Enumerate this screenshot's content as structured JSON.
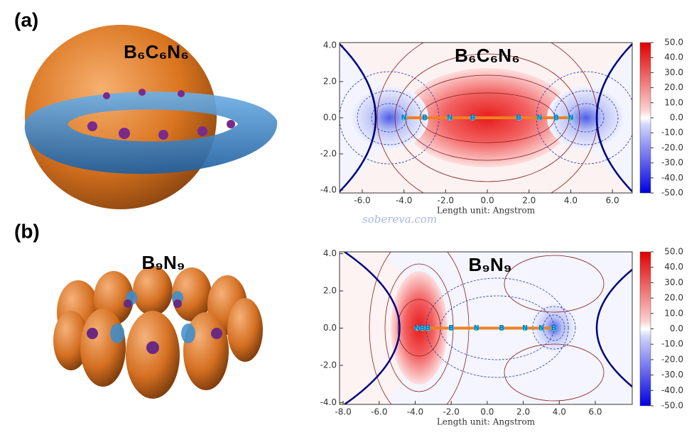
{
  "watermark": "sobereva.com",
  "panels": [
    {
      "label": "(a)",
      "molecule": "B₆C₆N₆",
      "map": {
        "title": "B₆C₆N₆",
        "xlabel": "Length unit: Angstrom",
        "xlim": [
          -7.09,
          6.95
        ],
        "ylim": [
          -4.16,
          4.16
        ],
        "xticks": [
          {
            "value": -6,
            "label": "-6.0"
          },
          {
            "value": -4,
            "label": "-4.0"
          },
          {
            "value": -2,
            "label": "-2.0"
          },
          {
            "value": 0,
            "label": "0.0"
          },
          {
            "value": 2,
            "label": "2.0"
          },
          {
            "value": 4,
            "label": "4.0"
          },
          {
            "value": 6,
            "label": "6.0"
          }
        ],
        "yticks": [
          {
            "value": 4,
            "label": "4.0"
          },
          {
            "value": 2,
            "label": "2.0"
          },
          {
            "value": 0,
            "label": "0.0"
          },
          {
            "value": -2,
            "label": "-2.0"
          },
          {
            "value": -4,
            "label": "-4.0"
          }
        ],
        "colorbar": {
          "lim": [
            -50,
            50
          ],
          "ticks": [
            {
              "value": 50,
              "label": "50.0"
            },
            {
              "value": 40,
              "label": "40.0"
            },
            {
              "value": 30,
              "label": "30.0"
            },
            {
              "value": 20,
              "label": "20.0"
            },
            {
              "value": 10,
              "label": "10.0"
            },
            {
              "value": 0,
              "label": "0.0"
            },
            {
              "value": -10,
              "label": "-10.0"
            },
            {
              "value": -20,
              "label": "-20.0"
            },
            {
              "value": -30,
              "label": "-30.0"
            },
            {
              "value": -40,
              "label": "-40.0"
            },
            {
              "value": -50,
              "label": "-50.0"
            }
          ]
        },
        "atoms": [
          {
            "label": "N",
            "x": -4.0
          },
          {
            "label": "B",
            "x": -3.0
          },
          {
            "label": "N",
            "x": -1.8
          },
          {
            "label": "B",
            "x": -0.7
          },
          {
            "label": "B",
            "x": 1.5
          },
          {
            "label": "N",
            "x": 2.5
          },
          {
            "label": "B",
            "x": 3.3
          },
          {
            "label": "N",
            "x": 4.0
          }
        ]
      }
    },
    {
      "label": "(b)",
      "molecule": "B₉N₉",
      "map": {
        "title": "B₉N₉",
        "xlabel": "Length unit: Angstrom",
        "xlim": [
          -8.2,
          8.05
        ],
        "ylim": [
          -4.1,
          4.1
        ],
        "xticks": [
          {
            "value": -8,
            "label": "-8.0"
          },
          {
            "value": -6,
            "label": "-6.0"
          },
          {
            "value": -4,
            "label": "-4.0"
          },
          {
            "value": -2,
            "label": "-2.0"
          },
          {
            "value": 0,
            "label": "0.0"
          },
          {
            "value": 2,
            "label": "2.0"
          },
          {
            "value": 4,
            "label": "4.0"
          },
          {
            "value": 6,
            "label": "6.0"
          }
        ],
        "yticks": [
          {
            "value": 4,
            "label": "4.0"
          },
          {
            "value": 2,
            "label": "2.0"
          },
          {
            "value": 0,
            "label": "0.0"
          },
          {
            "value": -2,
            "label": "-2.0"
          },
          {
            "value": -4,
            "label": "-4.0"
          }
        ],
        "colorbar": {
          "lim": [
            -50,
            50
          ],
          "ticks": [
            {
              "value": 50,
              "label": "50.0"
            },
            {
              "value": 40,
              "label": "40.0"
            },
            {
              "value": 30,
              "label": "30.0"
            },
            {
              "value": 20,
              "label": "20.0"
            },
            {
              "value": 10,
              "label": "10.0"
            },
            {
              "value": 0,
              "label": "0.0"
            },
            {
              "value": -10,
              "label": "-10.0"
            },
            {
              "value": -20,
              "label": "-20.0"
            },
            {
              "value": -30,
              "label": "-30.0"
            },
            {
              "value": -40,
              "label": "-40.0"
            },
            {
              "value": -50,
              "label": "-50.0"
            }
          ]
        },
        "atoms": [
          {
            "label": "N",
            "x": -3.9
          },
          {
            "label": "B",
            "x": -3.6
          },
          {
            "label": "B",
            "x": -3.3
          },
          {
            "label": "B",
            "x": -2.0
          },
          {
            "label": "N",
            "x": -0.6
          },
          {
            "label": "B",
            "x": 0.8
          },
          {
            "label": "N",
            "x": 2.1
          },
          {
            "label": "N",
            "x": 3.0
          },
          {
            "label": "B",
            "x": 3.7
          }
        ]
      }
    }
  ]
}
